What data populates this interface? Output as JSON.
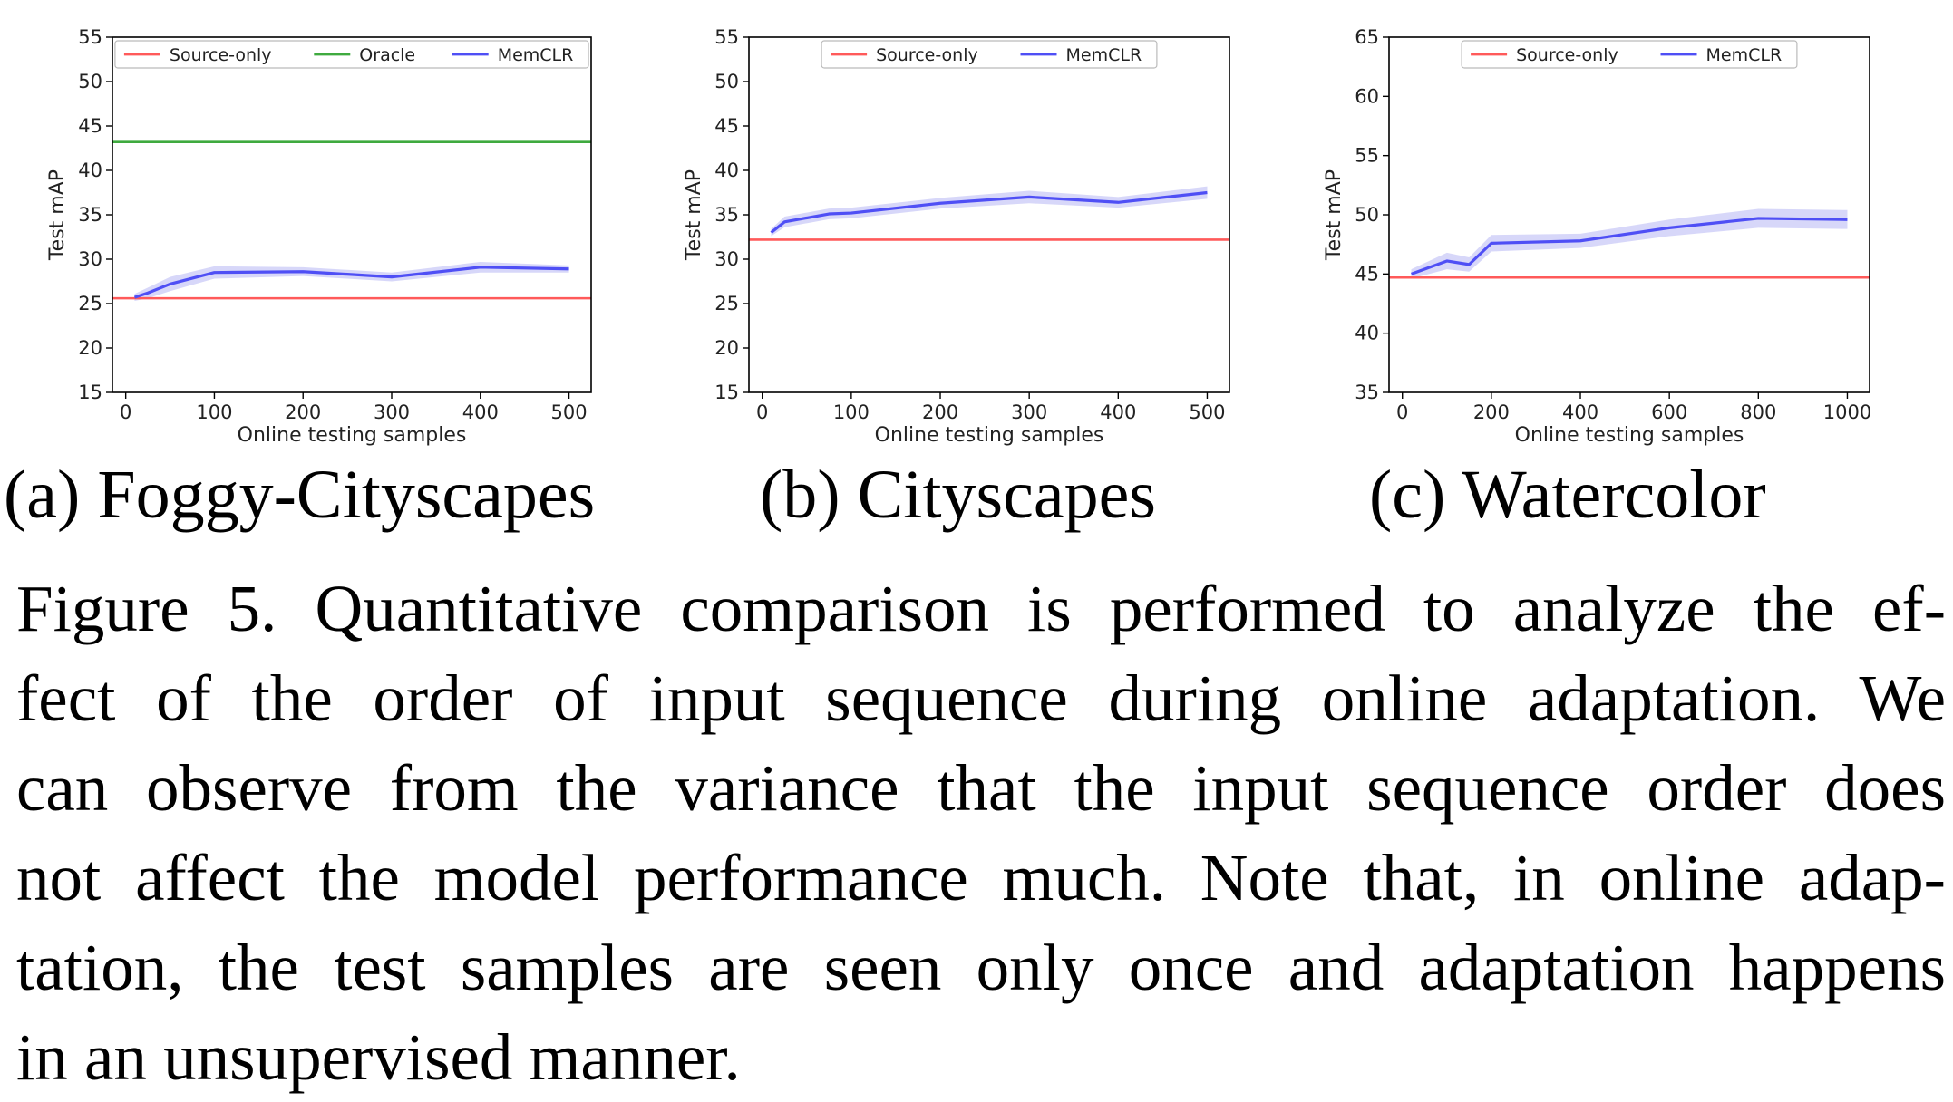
{
  "chart_data": [
    {
      "type": "line",
      "subcaption": "(a) Foggy-Cityscapes",
      "xlabel": "Online testing samples",
      "ylabel": "Test mAP",
      "xlim": [
        -15,
        525
      ],
      "ylim": [
        15,
        55
      ],
      "xticks": [
        0,
        100,
        200,
        300,
        400,
        500
      ],
      "yticks": [
        15,
        20,
        25,
        30,
        35,
        40,
        45,
        50,
        55
      ],
      "grid": false,
      "legend_position": "top",
      "legend": [
        "Source-only",
        "Oracle",
        "MemCLR"
      ],
      "series": [
        {
          "name": "Source-only",
          "kind": "hline",
          "y": 25.6,
          "color": "#ff5a5a"
        },
        {
          "name": "Oracle",
          "kind": "hline",
          "y": 43.2,
          "color": "#3faa3f"
        },
        {
          "name": "MemCLR",
          "kind": "line",
          "color": "#4f4ff5",
          "band_color": "#c9c9f7",
          "x": [
            10,
            25,
            50,
            100,
            200,
            300,
            400,
            500
          ],
          "y": [
            25.7,
            26.2,
            27.2,
            28.5,
            28.6,
            28.0,
            29.1,
            28.9
          ],
          "band": [
            0.4,
            0.6,
            0.8,
            0.7,
            0.5,
            0.5,
            0.6,
            0.4
          ]
        }
      ]
    },
    {
      "type": "line",
      "subcaption": "(b) Cityscapes",
      "xlabel": "Online testing samples",
      "ylabel": "Test mAP",
      "xlim": [
        -15,
        525
      ],
      "ylim": [
        15,
        55
      ],
      "xticks": [
        0,
        100,
        200,
        300,
        400,
        500
      ],
      "yticks": [
        15,
        20,
        25,
        30,
        35,
        40,
        45,
        50,
        55
      ],
      "grid": false,
      "legend_position": "top",
      "legend": [
        "Source-only",
        "MemCLR"
      ],
      "series": [
        {
          "name": "Source-only",
          "kind": "hline",
          "y": 32.2,
          "color": "#ff5a5a"
        },
        {
          "name": "MemCLR",
          "kind": "line",
          "color": "#4f4ff5",
          "band_color": "#c9c9f7",
          "x": [
            10,
            25,
            75,
            100,
            200,
            300,
            400,
            500
          ],
          "y": [
            33.0,
            34.2,
            35.1,
            35.2,
            36.3,
            37.0,
            36.4,
            37.5
          ],
          "band": [
            0.4,
            0.6,
            0.6,
            0.6,
            0.6,
            0.7,
            0.6,
            0.7
          ]
        }
      ]
    },
    {
      "type": "line",
      "subcaption": "(c) Watercolor",
      "xlabel": "Online testing samples",
      "ylabel": "Test mAP",
      "xlim": [
        -30,
        1050
      ],
      "ylim": [
        35,
        65
      ],
      "xticks": [
        0,
        200,
        400,
        600,
        800,
        1000
      ],
      "yticks": [
        35,
        40,
        45,
        50,
        55,
        60,
        65
      ],
      "grid": false,
      "legend_position": "top",
      "legend": [
        "Source-only",
        "MemCLR"
      ],
      "series": [
        {
          "name": "Source-only",
          "kind": "hline",
          "y": 44.7,
          "color": "#ff5a5a"
        },
        {
          "name": "MemCLR",
          "kind": "line",
          "color": "#4f4ff5",
          "band_color": "#c9c9f7",
          "x": [
            20,
            100,
            150,
            200,
            400,
            600,
            800,
            1000
          ],
          "y": [
            45.0,
            46.1,
            45.8,
            47.6,
            47.8,
            48.9,
            49.7,
            49.6
          ],
          "band": [
            0.4,
            0.7,
            0.6,
            0.7,
            0.6,
            0.7,
            0.8,
            0.8
          ]
        }
      ]
    }
  ],
  "caption": {
    "lines": [
      "Figure 5. Quantitative comparison is performed to analyze the ef-",
      "fect of the order of input sequence during online adaptation.  We",
      "can observe from the variance that the input sequence order does",
      "not affect the model performance much. Note that, in online adap-",
      "tation, the test samples are seen only once and adaptation happens",
      "in an unsupervised manner."
    ]
  }
}
